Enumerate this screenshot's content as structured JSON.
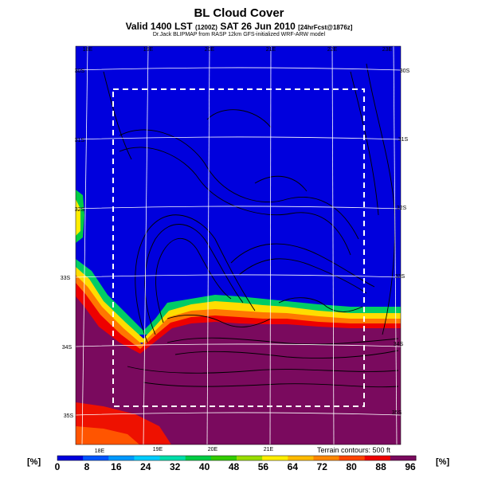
{
  "header": {
    "title": "BL Cloud Cover",
    "valid_main": "Valid 1400 LST",
    "valid_small": "(1200Z)",
    "valid_date": "SAT 26 Jun 2010",
    "valid_forecast": "[24hrFcst@1876z]",
    "subtitle": "Dr.Jack BLIPMAP from RASP 12km GFS-initialized WRF-ARW model"
  },
  "map": {
    "top_lon_labels": [
      "18E",
      "19E",
      "20E",
      "21E",
      "22E",
      "23E"
    ],
    "bottom_lon_labels": [
      "18E",
      "19E",
      "20E",
      "21E"
    ],
    "lat_labels_left": [
      "30S",
      "31S",
      "32S",
      "33S",
      "34S",
      "35S"
    ],
    "lat_labels_right": [
      "30S",
      "31S",
      "32S",
      "33S",
      "34S",
      "35S"
    ],
    "terrain_note": "Terrain contours: 500 ft"
  },
  "colorbar": {
    "unit_left": "[%]",
    "unit_right": "[%]",
    "ticks": [
      "0",
      "8",
      "16",
      "24",
      "32",
      "40",
      "48",
      "56",
      "64",
      "72",
      "80",
      "88",
      "96"
    ],
    "colors": [
      "#0000dd",
      "#0055ff",
      "#0099ff",
      "#00ccff",
      "#00ddaa",
      "#00cc44",
      "#33cc00",
      "#99dd00",
      "#ffee00",
      "#ffbb00",
      "#ff8800",
      "#ff4400",
      "#ee0000",
      "#7a0a5e"
    ]
  }
}
